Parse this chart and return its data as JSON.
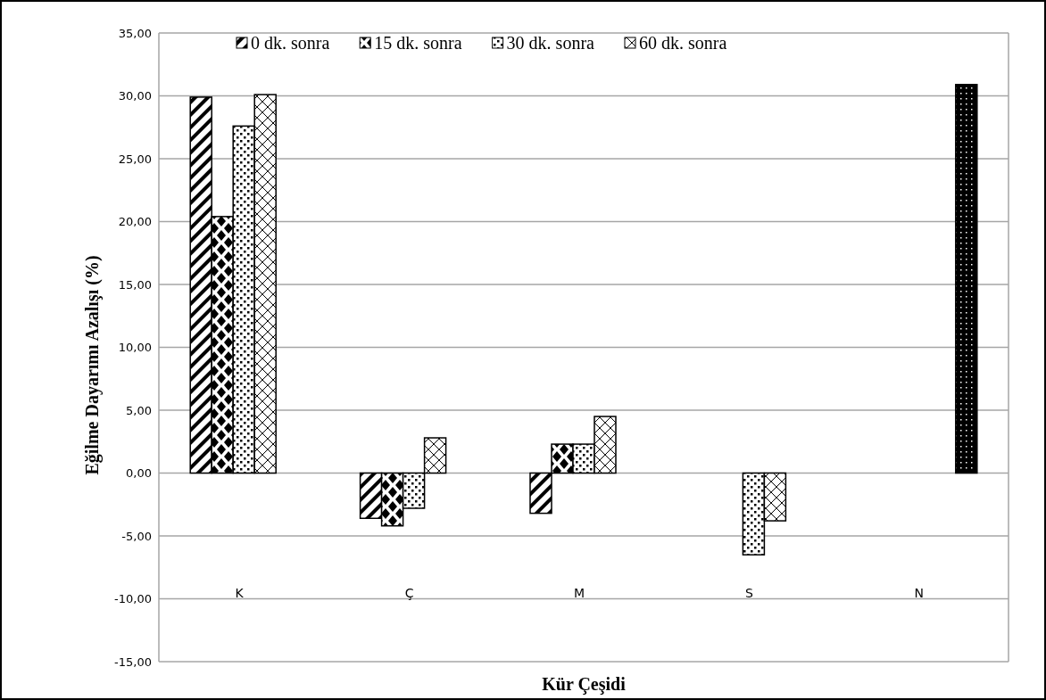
{
  "chart_data": {
    "type": "bar",
    "xlabel": "Kür Çeşidi",
    "ylabel": "Eğilme Dayarımı Azalışı (%)",
    "categories": [
      "K",
      "Ç",
      "M",
      "S",
      "N"
    ],
    "series": [
      {
        "name": "0 dk. sonra",
        "color": "#000000",
        "values": [
          29.9,
          -3.6,
          -3.2,
          null,
          null
        ]
      },
      {
        "name": "15 dk. sonra",
        "color": "#000000",
        "values": [
          20.4,
          -4.2,
          2.3,
          null,
          null
        ]
      },
      {
        "name": "30 dk. sonra",
        "color": "#000000",
        "values": [
          27.6,
          -2.8,
          2.3,
          -6.5,
          null
        ]
      },
      {
        "name": "60 dk. sonra",
        "color": "#000000",
        "values": [
          30.1,
          2.8,
          4.5,
          -3.8,
          null
        ]
      },
      {
        "color": "#000000",
        "values": [
          null,
          null,
          null,
          null,
          30.9
        ]
      }
    ],
    "ylim": [
      -15,
      35
    ],
    "yticks": [
      {
        "value": -15,
        "label": "-15,00"
      },
      {
        "value": -10,
        "label": "-10,00"
      },
      {
        "value": -5,
        "label": "-5,00"
      },
      {
        "value": 0,
        "label": "0,00"
      },
      {
        "value": 5,
        "label": "5,00"
      },
      {
        "value": 10,
        "label": "10,00"
      },
      {
        "value": 15,
        "label": "15,00"
      },
      {
        "value": 20,
        "label": "20,00"
      },
      {
        "value": 25,
        "label": "25,00"
      },
      {
        "value": 30,
        "label": "30,00"
      },
      {
        "value": 35,
        "label": "35,00"
      }
    ],
    "grid": "y",
    "legend": "top"
  }
}
